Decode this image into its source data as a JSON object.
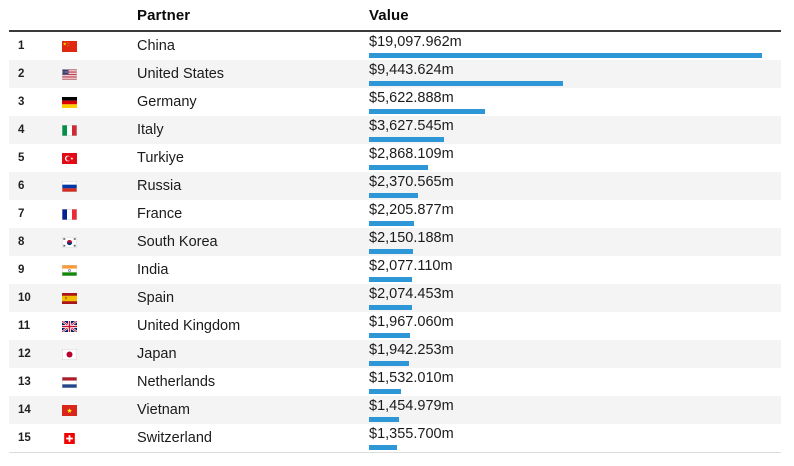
{
  "header": {
    "partner_label": "Partner",
    "value_label": "Value"
  },
  "colors": {
    "bar": "#2E97D8",
    "row_alt": "#F4F4F4",
    "header_border": "#3A3A3A",
    "bottom_border": "#DCDCDC"
  },
  "rows": [
    {
      "rank": "1",
      "flag": "china",
      "partner": "China",
      "value_label": "$19,097.962m",
      "value": 19097.962
    },
    {
      "rank": "2",
      "flag": "united-states",
      "partner": "United States",
      "value_label": "$9,443.624m",
      "value": 9443.624
    },
    {
      "rank": "3",
      "flag": "germany",
      "partner": "Germany",
      "value_label": "$5,622.888m",
      "value": 5622.888
    },
    {
      "rank": "4",
      "flag": "italy",
      "partner": "Italy",
      "value_label": "$3,627.545m",
      "value": 3627.545
    },
    {
      "rank": "5",
      "flag": "turkiye",
      "partner": "Turkiye",
      "value_label": "$2,868.109m",
      "value": 2868.109
    },
    {
      "rank": "6",
      "flag": "russia",
      "partner": "Russia",
      "value_label": "$2,370.565m",
      "value": 2370.565
    },
    {
      "rank": "7",
      "flag": "france",
      "partner": "France",
      "value_label": "$2,205.877m",
      "value": 2205.877
    },
    {
      "rank": "8",
      "flag": "south-korea",
      "partner": "South Korea",
      "value_label": "$2,150.188m",
      "value": 2150.188
    },
    {
      "rank": "9",
      "flag": "india",
      "partner": "India",
      "value_label": "$2,077.110m",
      "value": 2077.11
    },
    {
      "rank": "10",
      "flag": "spain",
      "partner": "Spain",
      "value_label": "$2,074.453m",
      "value": 2074.453
    },
    {
      "rank": "11",
      "flag": "united-kingdom",
      "partner": "United Kingdom",
      "value_label": "$1,967.060m",
      "value": 1967.06
    },
    {
      "rank": "12",
      "flag": "japan",
      "partner": "Japan",
      "value_label": "$1,942.253m",
      "value": 1942.253
    },
    {
      "rank": "13",
      "flag": "netherlands",
      "partner": "Netherlands",
      "value_label": "$1,532.010m",
      "value": 1532.01
    },
    {
      "rank": "14",
      "flag": "vietnam",
      "partner": "Vietnam",
      "value_label": "$1,454.979m",
      "value": 1454.979
    },
    {
      "rank": "15",
      "flag": "switzerland",
      "partner": "Switzerland",
      "value_label": "$1,355.700m",
      "value": 1355.7
    }
  ],
  "chart_data": {
    "type": "bar",
    "orientation": "horizontal",
    "title": "",
    "xlabel": "Value",
    "ylabel": "Partner",
    "categories": [
      "China",
      "United States",
      "Germany",
      "Italy",
      "Turkiye",
      "Russia",
      "France",
      "South Korea",
      "India",
      "Spain",
      "United Kingdom",
      "Japan",
      "Netherlands",
      "Vietnam",
      "Switzerland"
    ],
    "values": [
      19097.962,
      9443.624,
      5622.888,
      3627.545,
      2868.109,
      2370.565,
      2205.877,
      2150.188,
      2077.11,
      2074.453,
      1967.06,
      1942.253,
      1532.01,
      1454.979,
      1355.7
    ],
    "value_labels": [
      "$19,097.962m",
      "$9,443.624m",
      "$5,622.888m",
      "$3,627.545m",
      "$2,868.109m",
      "$2,370.565m",
      "$2,205.877m",
      "$2,150.188m",
      "$2,077.110m",
      "$2,074.453m",
      "$1,967.060m",
      "$1,942.253m",
      "$1,532.010m",
      "$1,454.979m",
      "$1,355.700m"
    ],
    "xlim": [
      0,
      19097.962
    ],
    "grid": false,
    "legend": false
  }
}
